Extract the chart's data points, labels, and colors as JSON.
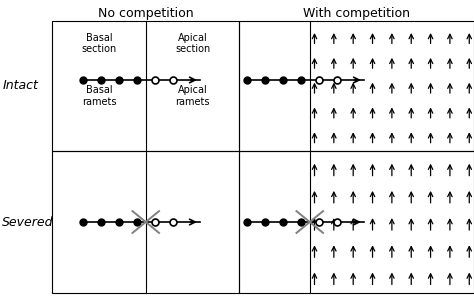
{
  "title_no_comp": "No competition",
  "title_with_comp": "With competition",
  "row_label_intact": "Intact",
  "row_label_severed": "Severed",
  "labels_top_left": [
    "Basal\nsection",
    "Apical\nsection"
  ],
  "labels_bottom_left": [
    "Basal\nramets",
    "Apical\nramets"
  ],
  "background_color": "#ffffff",
  "n_arrow_cols": 9,
  "n_arrow_rows": 5
}
